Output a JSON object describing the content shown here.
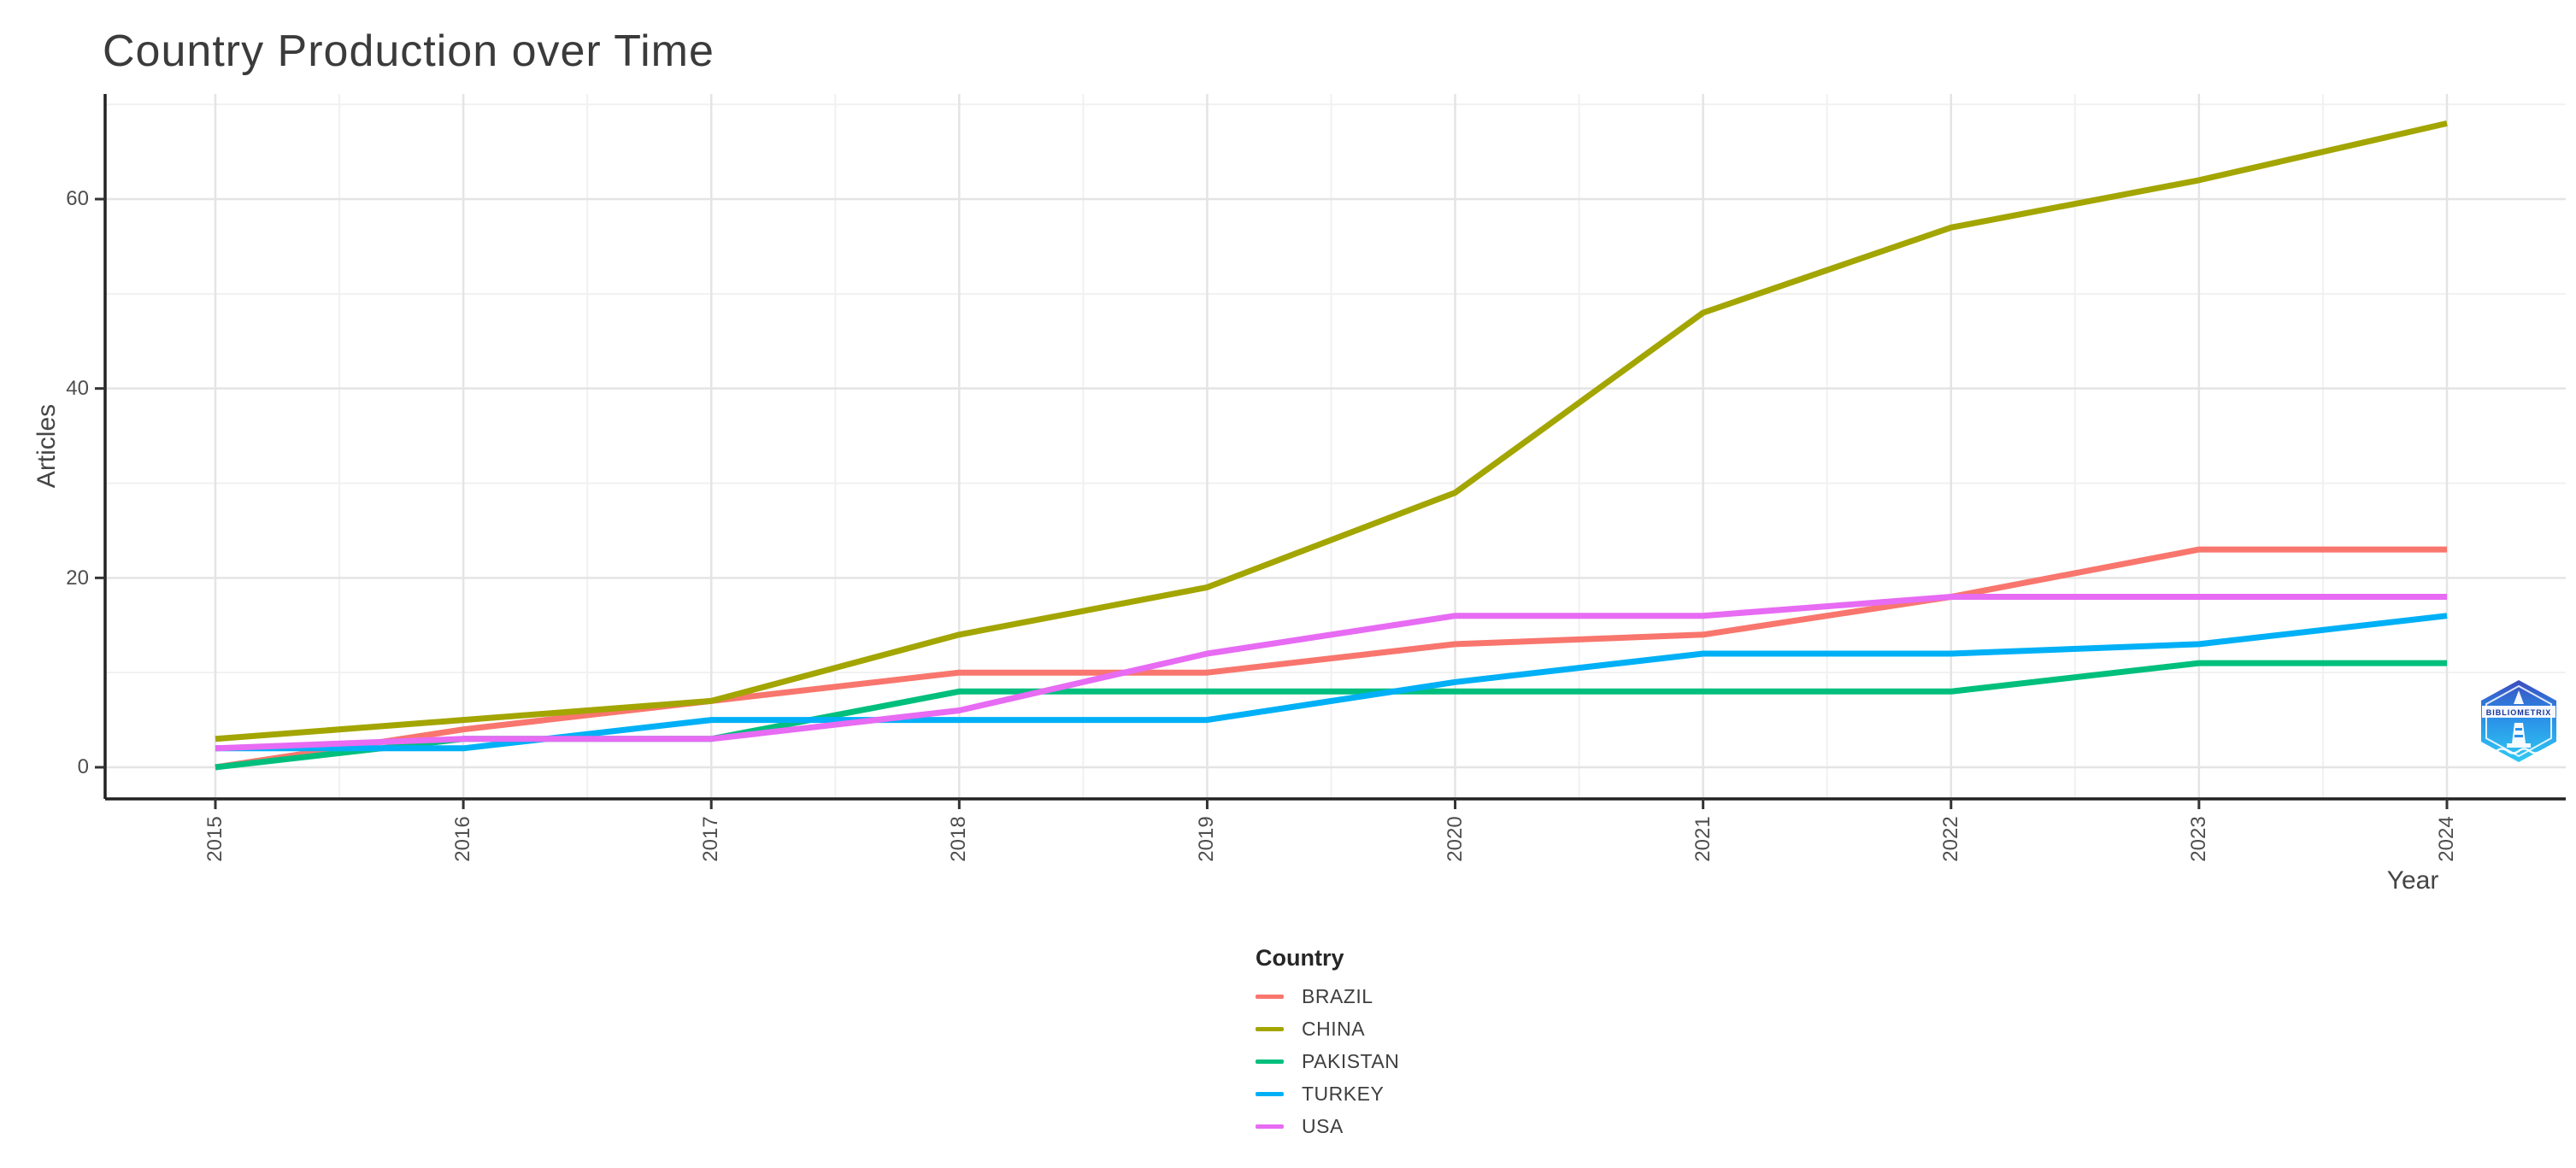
{
  "title": "Country Production over Time",
  "x_axis": {
    "label": "Year",
    "ticks": [
      "2015",
      "2016",
      "2017",
      "2018",
      "2019",
      "2020",
      "2021",
      "2022",
      "2023",
      "2024"
    ]
  },
  "y_axis": {
    "label": "Articles",
    "ticks": [
      "60",
      "40",
      "20",
      "0"
    ]
  },
  "legend": {
    "title": "Country",
    "entries": [
      {
        "label": "BRAZIL",
        "color": "#f8766d"
      },
      {
        "label": "CHINA",
        "color": "#a3a500"
      },
      {
        "label": "PAKISTAN",
        "color": "#00bf7d"
      },
      {
        "label": "TURKEY",
        "color": "#00b0f6"
      },
      {
        "label": "USA",
        "color": "#e76bf3"
      }
    ]
  },
  "logo": {
    "name": "bibliometrix-logo",
    "text": "BIBLIOMETRIX"
  },
  "chart_data": {
    "type": "line",
    "title": "Country Production over Time",
    "xlabel": "Year",
    "ylabel": "Articles",
    "x": [
      2015,
      2016,
      2017,
      2018,
      2019,
      2020,
      2021,
      2022,
      2023,
      2024
    ],
    "series": [
      {
        "name": "BRAZIL",
        "color": "#f8766d",
        "values": [
          0,
          4,
          7,
          10,
          10,
          13,
          14,
          18,
          23,
          23
        ]
      },
      {
        "name": "CHINA",
        "color": "#a3a500",
        "values": [
          3,
          5,
          7,
          14,
          19,
          29,
          48,
          57,
          62,
          68
        ]
      },
      {
        "name": "PAKISTAN",
        "color": "#00bf7d",
        "values": [
          0,
          3,
          3,
          8,
          8,
          8,
          8,
          8,
          11,
          11
        ]
      },
      {
        "name": "TURKEY",
        "color": "#00b0f6",
        "values": [
          2,
          2,
          5,
          5,
          5,
          9,
          12,
          12,
          13,
          16
        ]
      },
      {
        "name": "USA",
        "color": "#e76bf3",
        "values": [
          2,
          3,
          3,
          6,
          12,
          16,
          16,
          18,
          18,
          18
        ]
      }
    ],
    "ylim": [
      0,
      70
    ],
    "y_major_ticks": [
      0,
      20,
      40,
      60
    ],
    "y_minor_ticks": [
      10,
      30,
      50,
      70
    ],
    "grid": true,
    "legend_position": "bottom"
  },
  "colors": {
    "axis_line": "#222222",
    "major_grid": "#e4e4e4",
    "minor_grid": "#f1f1f1",
    "tick_mark": "#333333"
  }
}
